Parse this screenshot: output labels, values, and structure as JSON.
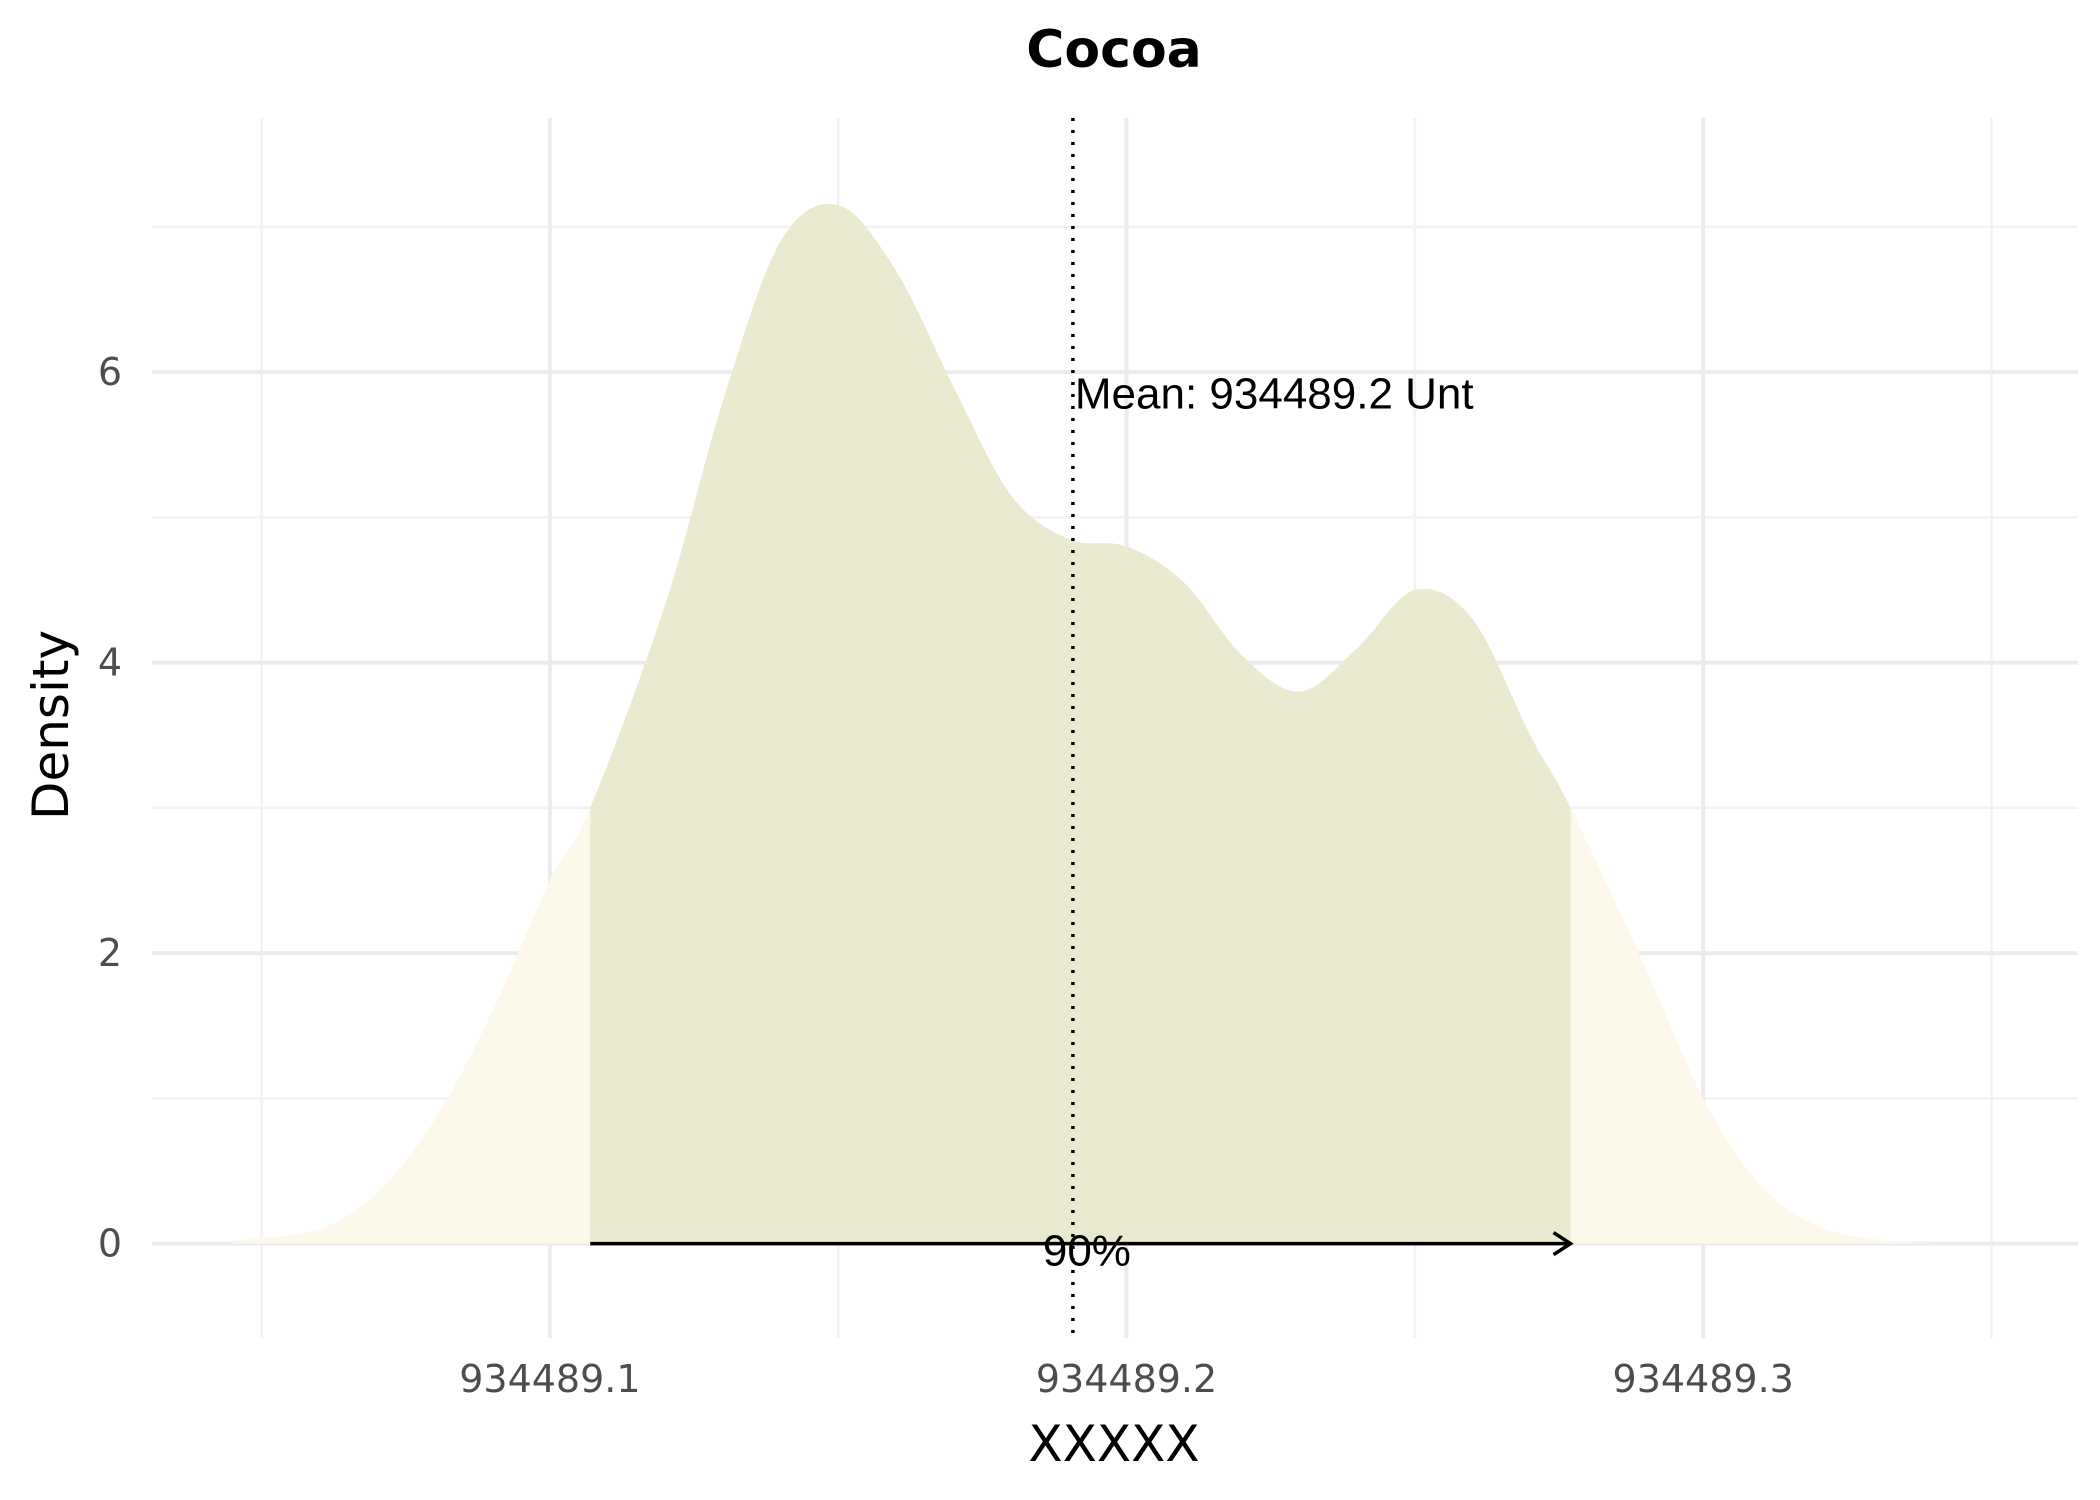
{
  "chart_data": {
    "type": "area",
    "title": "Cocoa",
    "xlabel": "XXXXX",
    "ylabel": "Density",
    "xlim": [
      934489.031,
      934489.365
    ],
    "ylim": [
      -0.65,
      7.75
    ],
    "x_ticks": [
      {
        "value": 934489.1,
        "label": "934489.1"
      },
      {
        "value": 934489.2,
        "label": "934489.2"
      },
      {
        "value": 934489.3,
        "label": "934489.3"
      }
    ],
    "x_minor_ticks": [
      934489.05,
      934489.15,
      934489.25,
      934489.35
    ],
    "y_ticks": [
      {
        "value": 0,
        "label": "0"
      },
      {
        "value": 2,
        "label": "2"
      },
      {
        "value": 4,
        "label": "4"
      },
      {
        "value": 6,
        "label": "6"
      }
    ],
    "y_minor_ticks": [
      1,
      3,
      5,
      7
    ],
    "grid": true,
    "legend": "none",
    "series": [
      {
        "x": [
          934489.045,
          934489.06,
          934489.07,
          934489.08,
          934489.09,
          934489.1,
          934489.107,
          934489.12,
          934489.13,
          934489.14,
          934489.15,
          934489.16,
          934489.17,
          934489.18,
          934489.19,
          934489.2,
          934489.21,
          934489.22,
          934489.23,
          934489.24,
          934489.25,
          934489.26,
          934489.27,
          934489.277,
          934489.29,
          934489.3,
          934489.31,
          934489.32,
          934489.33,
          934489.34
        ],
        "y": [
          0.02,
          0.1,
          0.35,
          0.85,
          1.6,
          2.5,
          3.0,
          4.4,
          5.8,
          6.9,
          7.15,
          6.7,
          5.9,
          5.15,
          4.85,
          4.8,
          4.55,
          4.05,
          3.8,
          4.1,
          4.5,
          4.3,
          3.5,
          3.0,
          1.9,
          1.0,
          0.4,
          0.12,
          0.03,
          0.0
        ]
      }
    ],
    "shaded_interval": {
      "from": 934489.107,
      "to": 934489.277,
      "label": "90%"
    },
    "mean": {
      "value": 934489.1907,
      "label": "Mean: 934489.2 Unt"
    },
    "colors": {
      "outer_fill": "#fdf9ea",
      "inner_fill": "#e9eacf",
      "mean_line": "#000000"
    }
  }
}
